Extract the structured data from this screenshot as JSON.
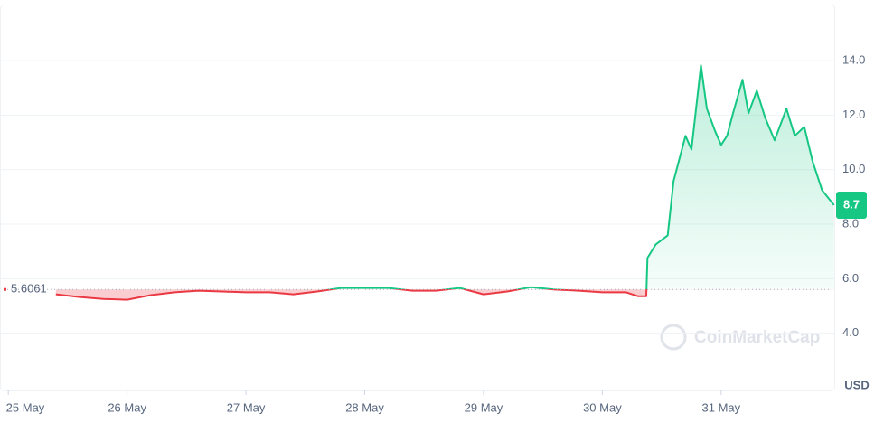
{
  "chart_data": {
    "type": "line",
    "x": [
      25.4,
      25.6,
      25.8,
      26.0,
      26.2,
      26.4,
      26.6,
      26.8,
      27.0,
      27.2,
      27.4,
      27.6,
      27.8,
      28.0,
      28.2,
      28.4,
      28.6,
      28.8,
      29.0,
      29.2,
      29.4,
      29.6,
      29.8,
      30.0,
      30.2,
      30.3,
      30.37,
      30.38,
      30.45,
      30.55,
      30.6,
      30.7,
      30.75,
      30.83,
      30.88,
      30.95,
      31.0,
      31.05,
      31.1,
      31.18,
      31.23,
      31.3,
      31.37,
      31.45,
      31.55,
      31.62,
      31.7,
      31.77,
      31.85,
      31.95
    ],
    "series": [
      {
        "name": "Price",
        "values": [
          5.43,
          5.33,
          5.26,
          5.23,
          5.4,
          5.5,
          5.56,
          5.53,
          5.5,
          5.5,
          5.43,
          5.53,
          5.66,
          5.66,
          5.66,
          5.56,
          5.56,
          5.66,
          5.43,
          5.53,
          5.69,
          5.6,
          5.56,
          5.5,
          5.5,
          5.36,
          5.36,
          6.76,
          7.26,
          7.59,
          9.58,
          11.24,
          10.74,
          13.83,
          12.24,
          11.41,
          10.91,
          11.24,
          12.07,
          13.3,
          12.07,
          12.9,
          11.91,
          11.08,
          12.24,
          11.24,
          11.57,
          10.31,
          9.25,
          8.7
        ]
      }
    ],
    "up_color": "#16c784",
    "down_color": "#ea3943",
    "baseline": 5.6061,
    "current_price": 8.7,
    "xlim": [
      24.93,
      31.96
    ],
    "xticks": [
      {
        "value": 25,
        "label": "25 May"
      },
      {
        "value": 26,
        "label": "26 May"
      },
      {
        "value": 27,
        "label": "27 May"
      },
      {
        "value": 28,
        "label": "28 May"
      },
      {
        "value": 29,
        "label": "29 May"
      },
      {
        "value": 30,
        "label": "30 May"
      },
      {
        "value": 31,
        "label": "31 May"
      }
    ],
    "ylim": [
      1.9,
      16.06
    ],
    "yticks": [
      {
        "value": 4,
        "label": "4.0"
      },
      {
        "value": 6,
        "label": "6.0"
      },
      {
        "value": 8,
        "label": "8.0"
      },
      {
        "value": 10,
        "label": "10.0"
      },
      {
        "value": 12,
        "label": "12.0"
      },
      {
        "value": 14,
        "label": "14.0"
      }
    ],
    "y_unit": "USD",
    "watermark": "CoinMarketCap",
    "grid": true
  }
}
